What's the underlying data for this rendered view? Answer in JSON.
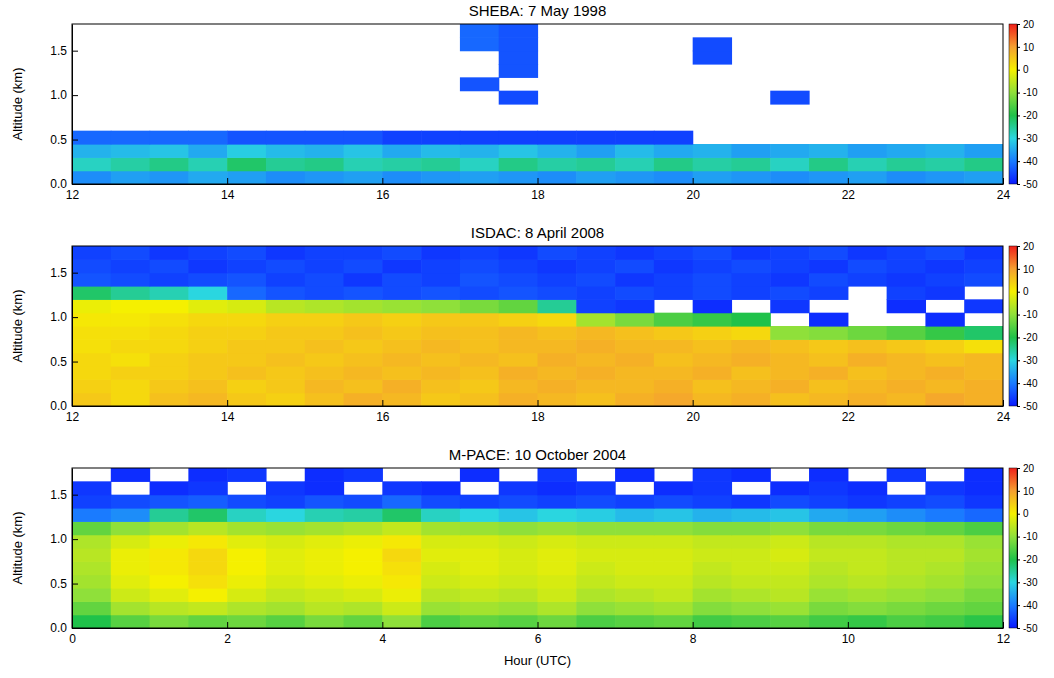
{
  "chart_data": [
    {
      "type": "heatmap",
      "title": "SHEBA: 7 May 1998",
      "y_label": "Altitude (km)",
      "x": [
        12.25,
        12.75,
        13.25,
        13.75,
        14.25,
        14.75,
        15.25,
        15.75,
        16.25,
        16.75,
        17.25,
        17.75,
        18.25,
        18.75,
        19.25,
        19.75,
        20.25,
        20.75,
        21.25,
        21.75,
        22.25,
        22.75,
        23.25,
        23.75
      ],
      "y": [
        0.075,
        0.225,
        0.375,
        0.525,
        0.675,
        0.825,
        0.975,
        1.125,
        1.275,
        1.425,
        1.575,
        1.725
      ],
      "z": [
        [
          -38,
          -36,
          -37,
          -35,
          -36,
          -38,
          -37,
          -36,
          -38,
          -37,
          -36,
          -37,
          -38,
          -36,
          -37,
          -38,
          -36,
          -37,
          -38,
          -37,
          -36,
          -38,
          -37,
          -36
        ],
        [
          -28,
          -26,
          -24,
          -27,
          -22,
          -25,
          -24,
          -27,
          -26,
          -25,
          -28,
          -24,
          -26,
          -25,
          -27,
          -24,
          -26,
          -25,
          -28,
          -24,
          -27,
          -25,
          -26,
          -24
        ],
        [
          -34,
          -33,
          -32,
          -35,
          -31,
          -33,
          -34,
          -32,
          -35,
          -33,
          -34,
          -32,
          -34,
          -36,
          -33,
          -35,
          -34,
          -36,
          -35,
          -34,
          -36,
          -35,
          -34,
          -36
        ],
        [
          -42,
          -42,
          -42,
          -42,
          -44,
          -44,
          -44,
          -44,
          -46,
          -46,
          -46,
          -46,
          -46,
          -46,
          -46,
          -46,
          null,
          null,
          null,
          null,
          null,
          null,
          null,
          null
        ],
        [
          null,
          null,
          null,
          null,
          null,
          null,
          null,
          null,
          null,
          null,
          null,
          null,
          null,
          null,
          null,
          null,
          null,
          null,
          null,
          null,
          null,
          null,
          null,
          null
        ],
        [
          null,
          null,
          null,
          null,
          null,
          null,
          null,
          null,
          null,
          null,
          null,
          null,
          null,
          null,
          null,
          null,
          null,
          null,
          null,
          null,
          null,
          null,
          null,
          null
        ],
        [
          null,
          null,
          null,
          null,
          null,
          null,
          null,
          null,
          null,
          null,
          null,
          -45,
          null,
          null,
          null,
          null,
          null,
          null,
          -45,
          null,
          null,
          null,
          null,
          null
        ],
        [
          null,
          null,
          null,
          null,
          null,
          null,
          null,
          null,
          null,
          null,
          -44,
          null,
          null,
          null,
          null,
          null,
          null,
          null,
          null,
          null,
          null,
          null,
          null,
          null
        ],
        [
          null,
          null,
          null,
          null,
          null,
          null,
          null,
          null,
          null,
          null,
          null,
          -44,
          null,
          null,
          null,
          null,
          null,
          null,
          null,
          null,
          null,
          null,
          null,
          null
        ],
        [
          null,
          null,
          null,
          null,
          null,
          null,
          null,
          null,
          null,
          null,
          null,
          -44,
          null,
          null,
          null,
          null,
          -45,
          null,
          null,
          null,
          null,
          null,
          null,
          null
        ],
        [
          null,
          null,
          null,
          null,
          null,
          null,
          null,
          null,
          null,
          null,
          -42,
          -44,
          null,
          null,
          null,
          null,
          -45,
          null,
          null,
          null,
          null,
          null,
          null,
          null
        ],
        [
          null,
          null,
          null,
          null,
          null,
          null,
          null,
          null,
          null,
          null,
          -42,
          -44,
          null,
          null,
          null,
          null,
          null,
          null,
          null,
          null,
          null,
          null,
          null,
          null
        ]
      ],
      "xlim": [
        12,
        24
      ],
      "xticks": [
        12,
        14,
        16,
        18,
        20,
        22,
        24
      ],
      "ylim": [
        0,
        1.8
      ],
      "yticks": [
        {
          "value": 0,
          "label": "0.0"
        },
        0.5,
        {
          "value": 1,
          "label": "1.0"
        },
        1.5
      ],
      "colorbar": {
        "range": [
          -50,
          20
        ],
        "ticks": [
          20,
          10,
          0,
          -10,
          -20,
          -30,
          -40,
          -50
        ]
      }
    },
    {
      "type": "heatmap",
      "title": "ISDAC: 8 April 2008",
      "y_label": "Altitude (km)",
      "x": [
        12.25,
        12.75,
        13.25,
        13.75,
        14.25,
        14.75,
        15.25,
        15.75,
        16.25,
        16.75,
        17.25,
        17.75,
        18.25,
        18.75,
        19.25,
        19.75,
        20.25,
        20.75,
        21.25,
        21.75,
        22.25,
        22.75,
        23.25,
        23.75
      ],
      "y": [
        0.075,
        0.225,
        0.375,
        0.525,
        0.675,
        0.825,
        0.975,
        1.125,
        1.275,
        1.425,
        1.575,
        1.725
      ],
      "z": [
        [
          5,
          3,
          6,
          7,
          5,
          4,
          6,
          8,
          7,
          5,
          6,
          8,
          7,
          6,
          8,
          9,
          7,
          8,
          6,
          7,
          8,
          7,
          9,
          8
        ],
        [
          4,
          3,
          5,
          6,
          4,
          5,
          7,
          6,
          8,
          6,
          5,
          7,
          8,
          7,
          7,
          8,
          6,
          7,
          8,
          6,
          7,
          8,
          7,
          8
        ],
        [
          3,
          4,
          4,
          5,
          6,
          5,
          6,
          7,
          6,
          7,
          6,
          8,
          7,
          8,
          7,
          7,
          8,
          6,
          7,
          8,
          6,
          7,
          8,
          7
        ],
        [
          3,
          2,
          4,
          5,
          5,
          6,
          5,
          6,
          7,
          6,
          7,
          6,
          8,
          7,
          8,
          6,
          7,
          8,
          7,
          6,
          8,
          7,
          6,
          7
        ],
        [
          2,
          3,
          3,
          4,
          5,
          5,
          6,
          5,
          6,
          7,
          6,
          7,
          7,
          8,
          7,
          7,
          6,
          7,
          6,
          5,
          6,
          5,
          4,
          2
        ],
        [
          2,
          2,
          3,
          4,
          4,
          5,
          5,
          6,
          5,
          6,
          6,
          7,
          6,
          7,
          6,
          5,
          4,
          3,
          -10,
          -11,
          -13,
          -15,
          -18,
          -22
        ],
        [
          1,
          1,
          2,
          3,
          3,
          4,
          4,
          5,
          4,
          5,
          5,
          4,
          3,
          -8,
          -12,
          -16,
          -18,
          -20,
          null,
          -48,
          null,
          null,
          -48,
          null
        ],
        [
          -1,
          0,
          0,
          -2,
          -3,
          -6,
          -7,
          -8,
          -9,
          -10,
          -12,
          -14,
          -25,
          -46,
          -47,
          null,
          -48,
          null,
          -47,
          null,
          null,
          -48,
          null,
          -47
        ],
        [
          -22,
          -25,
          -27,
          -30,
          -42,
          -44,
          -45,
          -44,
          -45,
          -44,
          -45,
          -44,
          -45,
          -46,
          -45,
          -46,
          -45,
          -46,
          -45,
          -46,
          null,
          -46,
          -47,
          null
        ],
        [
          -44,
          -45,
          -46,
          -45,
          -44,
          -46,
          -45,
          -47,
          -45,
          -46,
          -44,
          -45,
          -46,
          -45,
          -47,
          -46,
          -45,
          -46,
          -47,
          -45,
          -46,
          -47,
          -46,
          -45
        ],
        [
          -45,
          -46,
          -45,
          -47,
          -46,
          -45,
          -46,
          -45,
          -47,
          -46,
          -45,
          -46,
          -47,
          -46,
          -45,
          -47,
          -46,
          -45,
          -46,
          -47,
          -45,
          -46,
          -47,
          -46
        ],
        [
          -46,
          -45,
          -47,
          -46,
          -45,
          -47,
          -46,
          -46,
          -45,
          -47,
          -46,
          -47,
          -45,
          -46,
          -47,
          -46,
          -45,
          -47,
          -46,
          -45,
          -47,
          -46,
          -45,
          -47
        ]
      ],
      "xlim": [
        12,
        24
      ],
      "xticks": [
        12,
        14,
        16,
        18,
        20,
        22,
        24
      ],
      "ylim": [
        0,
        1.8
      ],
      "yticks": [
        {
          "value": 0,
          "label": "0.0"
        },
        0.5,
        {
          "value": 1,
          "label": "1.0"
        },
        1.5
      ],
      "colorbar": {
        "range": [
          -50,
          20
        ],
        "ticks": [
          20,
          10,
          0,
          -10,
          -20,
          -30,
          -40,
          -50
        ]
      }
    },
    {
      "type": "heatmap",
      "title": "M-PACE: 10 October 2004",
      "y_label": "Altitude (km)",
      "x_label": "Hour (UTC)",
      "x": [
        0.25,
        0.75,
        1.25,
        1.75,
        2.25,
        2.75,
        3.25,
        3.75,
        4.25,
        4.75,
        5.25,
        5.75,
        6.25,
        6.75,
        7.25,
        7.75,
        8.25,
        8.75,
        9.25,
        9.75,
        10.25,
        10.75,
        11.25,
        11.75
      ],
      "y": [
        0.075,
        0.225,
        0.375,
        0.525,
        0.675,
        0.825,
        0.975,
        1.125,
        1.275,
        1.425,
        1.575,
        1.725
      ],
      "z": [
        [
          -20,
          -15,
          -12,
          -14,
          -13,
          -15,
          -12,
          -14,
          -10,
          -16,
          -14,
          -15,
          -13,
          -16,
          -15,
          -14,
          -17,
          -16,
          -15,
          -17,
          -18,
          -16,
          -17,
          -19
        ],
        [
          -14,
          -8,
          -6,
          -5,
          -7,
          -8,
          -6,
          -7,
          -4,
          -9,
          -8,
          -9,
          -7,
          -10,
          -9,
          -8,
          -11,
          -10,
          -9,
          -12,
          -11,
          -12,
          -13,
          -14
        ],
        [
          -10,
          -4,
          -2,
          0,
          -3,
          -5,
          -4,
          -3,
          -1,
          -6,
          -5,
          -6,
          -4,
          -7,
          -6,
          -5,
          -8,
          -7,
          -6,
          -9,
          -8,
          -9,
          -10,
          -12
        ],
        [
          -8,
          -2,
          0,
          2,
          -1,
          -3,
          -2,
          -1,
          1,
          -4,
          -3,
          -4,
          -3,
          -5,
          -4,
          -4,
          -6,
          -5,
          -5,
          -7,
          -6,
          -7,
          -8,
          -10
        ],
        [
          -7,
          -1,
          1,
          3,
          0,
          -2,
          -1,
          0,
          2,
          -3,
          -2,
          -3,
          -2,
          -4,
          -3,
          -3,
          -5,
          -4,
          -4,
          -6,
          -5,
          -6,
          -7,
          -9
        ],
        [
          -6,
          -1,
          1,
          3,
          0,
          -2,
          -1,
          0,
          3,
          -2,
          -2,
          -3,
          -2,
          -3,
          -3,
          -3,
          -4,
          -4,
          -3,
          -5,
          -5,
          -6,
          -6,
          -8
        ],
        [
          -7,
          -3,
          -1,
          1,
          -2,
          -3,
          -2,
          -1,
          1,
          -3,
          -3,
          -4,
          -3,
          -4,
          -4,
          -4,
          -5,
          -5,
          -4,
          -6,
          -6,
          -7,
          -7,
          -9
        ],
        [
          -14,
          -10,
          -8,
          -6,
          -8,
          -9,
          -8,
          -7,
          -5,
          -8,
          -9,
          -10,
          -9,
          -10,
          -10,
          -10,
          -11,
          -11,
          -10,
          -12,
          -12,
          -13,
          -14,
          -16
        ],
        [
          -40,
          -38,
          -25,
          -22,
          -28,
          -30,
          -27,
          -26,
          -22,
          -28,
          -30,
          -32,
          -30,
          -31,
          -33,
          -32,
          -34,
          -33,
          -32,
          -35,
          -36,
          -38,
          -40,
          -42
        ],
        [
          -46,
          -45,
          -44,
          -43,
          -45,
          -46,
          -44,
          -45,
          -42,
          -45,
          -46,
          -45,
          -46,
          -45,
          -46,
          -45,
          -46,
          -47,
          -45,
          -46,
          -47,
          -46,
          -45,
          -47
        ],
        [
          -47,
          null,
          -48,
          -47,
          null,
          -47,
          -48,
          null,
          -47,
          -48,
          null,
          -47,
          -48,
          -47,
          null,
          -48,
          -47,
          null,
          -48,
          -47,
          -48,
          null,
          -47,
          -48
        ],
        [
          null,
          -48,
          null,
          -48,
          -47,
          null,
          -48,
          -47,
          null,
          null,
          -48,
          null,
          -47,
          null,
          -48,
          null,
          -47,
          -48,
          null,
          -48,
          null,
          -47,
          null,
          -48
        ]
      ],
      "xlim": [
        0,
        12
      ],
      "xticks": [
        0,
        2,
        4,
        6,
        8,
        10,
        12
      ],
      "ylim": [
        0,
        1.8
      ],
      "yticks": [
        {
          "value": 0,
          "label": "0.0"
        },
        0.5,
        {
          "value": 1,
          "label": "1.0"
        },
        1.5
      ],
      "colorbar": {
        "range": [
          -50,
          20
        ],
        "ticks": [
          20,
          10,
          0,
          -10,
          -20,
          -30,
          -40,
          -50
        ]
      }
    }
  ]
}
